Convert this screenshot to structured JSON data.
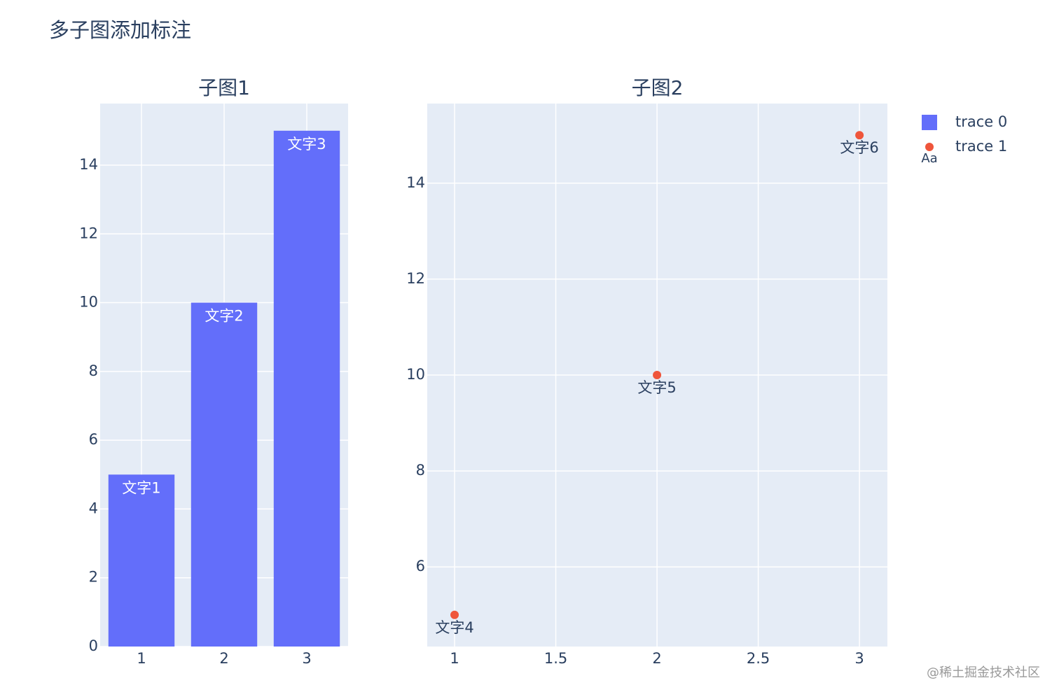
{
  "title": "多子图添加标注",
  "watermark": "@稀土掘金技术社区",
  "legend": {
    "position": "top-right",
    "text_symbol": "Aa"
  },
  "chart_data": [
    {
      "type": "bar",
      "title": "子图1",
      "x": [
        1,
        2,
        3
      ],
      "series": [
        {
          "name": "trace 0",
          "color": "#636efa",
          "values": [
            5,
            10,
            15
          ],
          "text": [
            "文字1",
            "文字2",
            "文字3"
          ]
        }
      ],
      "xlim": [
        0.5,
        3.5
      ],
      "xticks": [
        1,
        2,
        3
      ],
      "ylim": [
        0,
        15.79
      ],
      "yticks": [
        0,
        2,
        4,
        6,
        8,
        10,
        12,
        14
      ],
      "grid": true
    },
    {
      "type": "scatter",
      "title": "子图2",
      "x": [
        1,
        2,
        3
      ],
      "series": [
        {
          "name": "trace 1",
          "color": "#ef553b",
          "values": [
            5,
            10,
            15
          ],
          "text": [
            "文字4",
            "文字5",
            "文字6"
          ]
        }
      ],
      "xlim": [
        0.865,
        3.138
      ],
      "xticks": [
        1,
        1.5,
        2,
        2.5,
        3
      ],
      "ylim": [
        4.34,
        15.66
      ],
      "yticks": [
        6,
        8,
        10,
        12,
        14
      ],
      "grid": true
    }
  ]
}
